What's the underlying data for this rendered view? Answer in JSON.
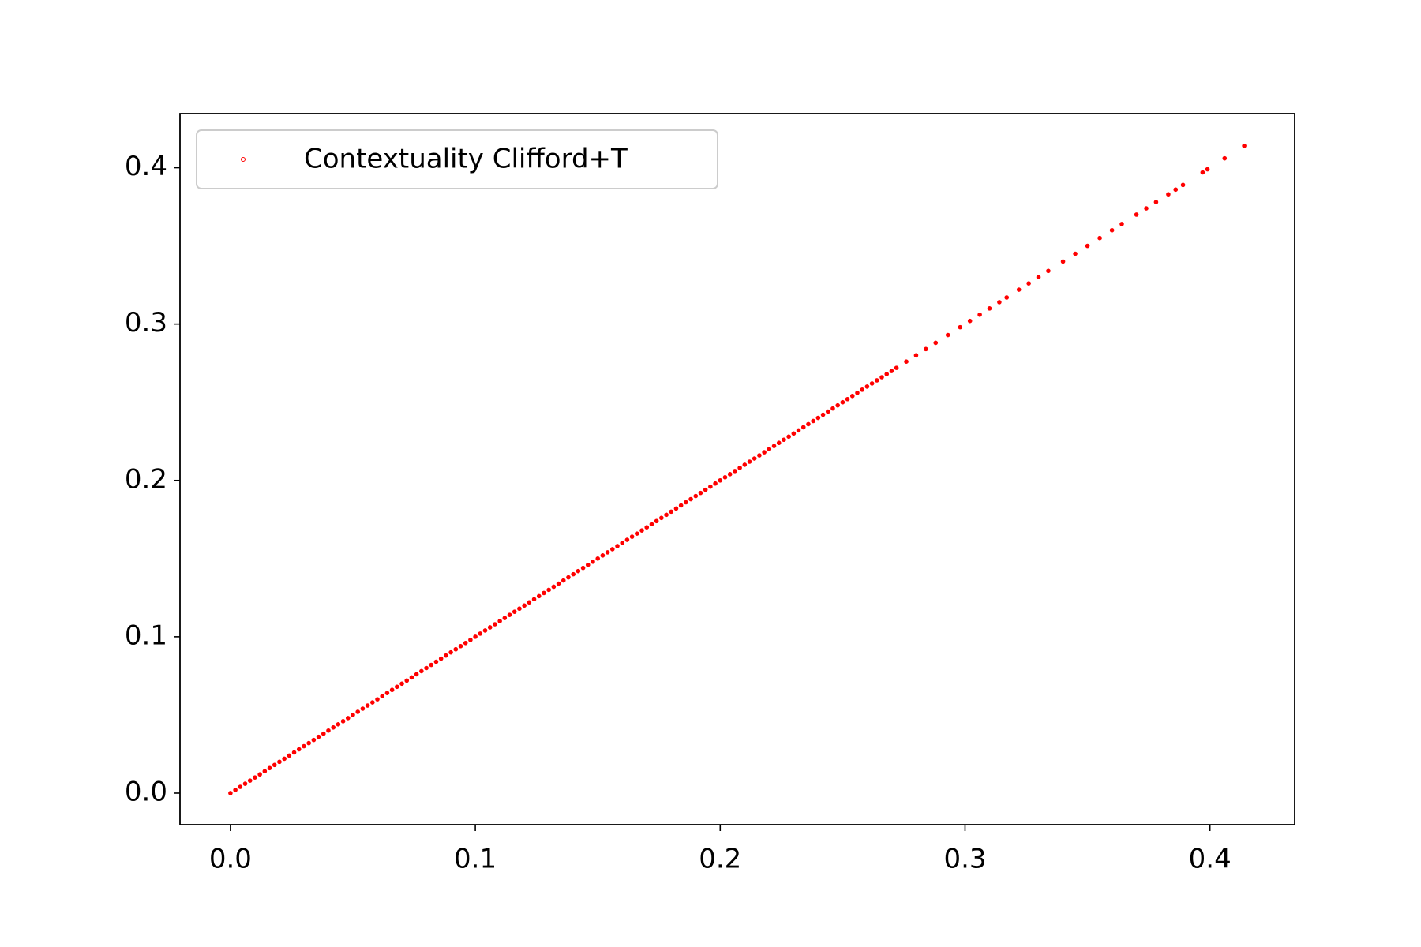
{
  "chart_data": {
    "type": "scatter",
    "series": [
      {
        "name": "Contextuality Clifford+T",
        "color": "#ff0000",
        "x": [
          0,
          0.002,
          0.004,
          0.006,
          0.008,
          0.01,
          0.012,
          0.014,
          0.016,
          0.018,
          0.02,
          0.022,
          0.024,
          0.026,
          0.028,
          0.03,
          0.032,
          0.034,
          0.036,
          0.038,
          0.04,
          0.042,
          0.044,
          0.046,
          0.048,
          0.05,
          0.052,
          0.054,
          0.056,
          0.058,
          0.06,
          0.062,
          0.064,
          0.066,
          0.068,
          0.07,
          0.072,
          0.074,
          0.076,
          0.078,
          0.08,
          0.082,
          0.084,
          0.086,
          0.088,
          0.09,
          0.092,
          0.094,
          0.096,
          0.098,
          0.1,
          0.102,
          0.104,
          0.106,
          0.108,
          0.11,
          0.112,
          0.114,
          0.116,
          0.118,
          0.12,
          0.122,
          0.124,
          0.126,
          0.128,
          0.13,
          0.132,
          0.134,
          0.136,
          0.138,
          0.14,
          0.142,
          0.144,
          0.146,
          0.148,
          0.15,
          0.152,
          0.154,
          0.156,
          0.158,
          0.16,
          0.162,
          0.164,
          0.166,
          0.168,
          0.17,
          0.172,
          0.174,
          0.176,
          0.178,
          0.18,
          0.182,
          0.184,
          0.186,
          0.188,
          0.19,
          0.192,
          0.194,
          0.196,
          0.198,
          0.2,
          0.202,
          0.204,
          0.206,
          0.208,
          0.21,
          0.212,
          0.214,
          0.216,
          0.218,
          0.22,
          0.222,
          0.224,
          0.226,
          0.228,
          0.23,
          0.232,
          0.234,
          0.236,
          0.238,
          0.24,
          0.242,
          0.244,
          0.246,
          0.248,
          0.25,
          0.252,
          0.254,
          0.256,
          0.258,
          0.26,
          0.262,
          0.264,
          0.266,
          0.268,
          0.27,
          0.272,
          0.276,
          0.28,
          0.284,
          0.288,
          0.293,
          0.298,
          0.302,
          0.306,
          0.31,
          0.314,
          0.317,
          0.322,
          0.326,
          0.33,
          0.334,
          0.34,
          0.345,
          0.35,
          0.355,
          0.36,
          0.364,
          0.37,
          0.374,
          0.378,
          0.383,
          0.386,
          0.389,
          0.397,
          0.399,
          0.406,
          0.414
        ],
        "y": [
          0,
          0.002,
          0.004,
          0.006,
          0.008,
          0.01,
          0.012,
          0.014,
          0.016,
          0.018,
          0.02,
          0.022,
          0.024,
          0.026,
          0.028,
          0.03,
          0.032,
          0.034,
          0.036,
          0.038,
          0.04,
          0.042,
          0.044,
          0.046,
          0.048,
          0.05,
          0.052,
          0.054,
          0.056,
          0.058,
          0.06,
          0.062,
          0.064,
          0.066,
          0.068,
          0.07,
          0.072,
          0.074,
          0.076,
          0.078,
          0.08,
          0.082,
          0.084,
          0.086,
          0.088,
          0.09,
          0.092,
          0.094,
          0.096,
          0.098,
          0.1,
          0.102,
          0.104,
          0.106,
          0.108,
          0.11,
          0.112,
          0.114,
          0.116,
          0.118,
          0.12,
          0.122,
          0.124,
          0.126,
          0.128,
          0.13,
          0.132,
          0.134,
          0.136,
          0.138,
          0.14,
          0.142,
          0.144,
          0.146,
          0.148,
          0.15,
          0.152,
          0.154,
          0.156,
          0.158,
          0.16,
          0.162,
          0.164,
          0.166,
          0.168,
          0.17,
          0.172,
          0.174,
          0.176,
          0.178,
          0.18,
          0.182,
          0.184,
          0.186,
          0.188,
          0.19,
          0.192,
          0.194,
          0.196,
          0.198,
          0.2,
          0.202,
          0.204,
          0.206,
          0.208,
          0.21,
          0.212,
          0.214,
          0.216,
          0.218,
          0.22,
          0.222,
          0.224,
          0.226,
          0.228,
          0.23,
          0.232,
          0.234,
          0.236,
          0.238,
          0.24,
          0.242,
          0.244,
          0.246,
          0.248,
          0.25,
          0.252,
          0.254,
          0.256,
          0.258,
          0.26,
          0.262,
          0.264,
          0.266,
          0.268,
          0.27,
          0.272,
          0.276,
          0.28,
          0.284,
          0.288,
          0.293,
          0.298,
          0.302,
          0.306,
          0.31,
          0.314,
          0.317,
          0.322,
          0.326,
          0.33,
          0.334,
          0.34,
          0.345,
          0.35,
          0.355,
          0.36,
          0.364,
          0.37,
          0.374,
          0.378,
          0.383,
          0.386,
          0.389,
          0.397,
          0.399,
          0.406,
          0.414
        ]
      }
    ],
    "xlim": [
      -0.0206,
      0.4346
    ],
    "ylim": [
      -0.0202,
      0.4346
    ],
    "xticks": [
      {
        "value": 0,
        "label": "0.0"
      },
      0.1,
      0.2,
      0.3,
      0.4
    ],
    "yticks": [
      {
        "value": 0,
        "label": "0.0"
      },
      0.1,
      0.2,
      0.3,
      0.4
    ],
    "grid": false,
    "legend": "upper left"
  }
}
